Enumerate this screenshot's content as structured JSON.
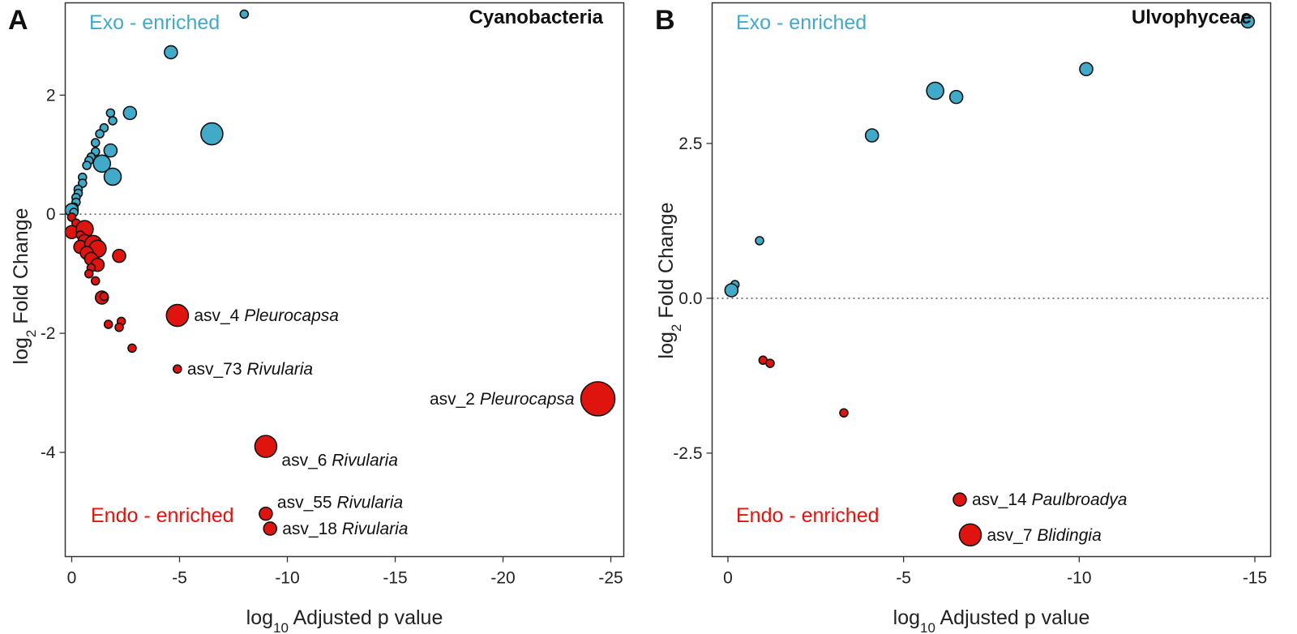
{
  "colors": {
    "exo": "#42aac9",
    "endo": "#e0140e"
  },
  "chart_data": [
    {
      "type": "scatter",
      "panel_letter": "A",
      "title": "Cyanobacteria",
      "xlabel": "log10 Adjusted p value",
      "ylabel": "log2 Fold Change",
      "xlim": [
        0.3,
        -25.6
      ],
      "ylim": [
        -5.75,
        3.55
      ],
      "xticks": [
        0,
        -5,
        -10,
        -15,
        -20,
        -25
      ],
      "yticks": [
        2,
        0,
        -2,
        -4
      ],
      "exo_label": "Exo - enriched",
      "endo_label": "Endo - enriched",
      "series": [
        {
          "name": "Exo - enriched",
          "color_key": "exo",
          "points": [
            {
              "x": -8.0,
              "y": 3.36,
              "size": 1
            },
            {
              "x": -4.6,
              "y": 2.72,
              "size": 2
            },
            {
              "x": -6.5,
              "y": 1.35,
              "size": 4
            },
            {
              "x": -2.7,
              "y": 1.7,
              "size": 2
            },
            {
              "x": -1.8,
              "y": 1.7,
              "size": 1
            },
            {
              "x": -1.9,
              "y": 1.57,
              "size": 1
            },
            {
              "x": -1.5,
              "y": 1.45,
              "size": 1
            },
            {
              "x": -1.3,
              "y": 1.35,
              "size": 1
            },
            {
              "x": -1.1,
              "y": 1.2,
              "size": 1
            },
            {
              "x": -1.8,
              "y": 1.07,
              "size": 2
            },
            {
              "x": -1.1,
              "y": 1.05,
              "size": 1
            },
            {
              "x": -0.9,
              "y": 0.96,
              "size": 1
            },
            {
              "x": -0.8,
              "y": 0.9,
              "size": 1
            },
            {
              "x": -1.4,
              "y": 0.85,
              "size": 3
            },
            {
              "x": -0.7,
              "y": 0.82,
              "size": 1
            },
            {
              "x": -1.9,
              "y": 0.63,
              "size": 3
            },
            {
              "x": -0.5,
              "y": 0.62,
              "size": 1
            },
            {
              "x": -0.5,
              "y": 0.52,
              "size": 1
            },
            {
              "x": -0.3,
              "y": 0.42,
              "size": 1
            },
            {
              "x": -0.3,
              "y": 0.35,
              "size": 1
            },
            {
              "x": -0.2,
              "y": 0.28,
              "size": 1
            },
            {
              "x": -0.2,
              "y": 0.2,
              "size": 1
            },
            {
              "x": -0.1,
              "y": 0.12,
              "size": 1
            },
            {
              "x": 0.0,
              "y": 0.07,
              "size": 2
            },
            {
              "x": -0.1,
              "y": 0.03,
              "size": 1
            }
          ]
        },
        {
          "name": "Endo - enriched",
          "color_key": "endo",
          "points": [
            {
              "x": 0.0,
              "y": -0.05,
              "size": 1
            },
            {
              "x": -0.2,
              "y": -0.15,
              "size": 1
            },
            {
              "x": 0.0,
              "y": -0.3,
              "size": 2
            },
            {
              "x": -0.6,
              "y": -0.25,
              "size": 3
            },
            {
              "x": -0.4,
              "y": -0.35,
              "size": 1
            },
            {
              "x": -0.6,
              "y": -0.45,
              "size": 2
            },
            {
              "x": -0.4,
              "y": -0.55,
              "size": 2
            },
            {
              "x": -1.0,
              "y": -0.5,
              "size": 3
            },
            {
              "x": -1.2,
              "y": -0.58,
              "size": 3
            },
            {
              "x": -0.7,
              "y": -0.65,
              "size": 2
            },
            {
              "x": -0.9,
              "y": -0.75,
              "size": 2
            },
            {
              "x": -2.2,
              "y": -0.7,
              "size": 2
            },
            {
              "x": -1.2,
              "y": -0.85,
              "size": 2
            },
            {
              "x": -0.9,
              "y": -0.9,
              "size": 1
            },
            {
              "x": -0.8,
              "y": -1.0,
              "size": 1
            },
            {
              "x": -1.1,
              "y": -1.12,
              "size": 1
            },
            {
              "x": -1.4,
              "y": -1.4,
              "size": 2
            },
            {
              "x": -1.5,
              "y": -1.38,
              "size": 1
            },
            {
              "x": -4.9,
              "y": -1.7,
              "size": 4,
              "asv": "asv_4",
              "genus": "Pleurocapsa",
              "label_side": "right"
            },
            {
              "x": -2.3,
              "y": -1.8,
              "size": 1
            },
            {
              "x": -1.7,
              "y": -1.85,
              "size": 1
            },
            {
              "x": -2.2,
              "y": -1.9,
              "size": 1
            },
            {
              "x": -2.8,
              "y": -2.25,
              "size": 1
            },
            {
              "x": -4.9,
              "y": -2.6,
              "size": 1,
              "asv": "asv_73",
              "genus": "Rivularia",
              "label_side": "right"
            },
            {
              "x": -24.4,
              "y": -3.1,
              "size": 5,
              "asv": "asv_2",
              "genus": "Pleurocapsa",
              "label_side": "left"
            },
            {
              "x": -9.0,
              "y": -3.9,
              "size": 4,
              "asv": "asv_6",
              "genus": "Rivularia",
              "label_side": "below-right"
            },
            {
              "x": -9.0,
              "y": -5.03,
              "size": 2,
              "asv": "asv_55",
              "genus": "Rivularia",
              "label_side": "above-right"
            },
            {
              "x": -9.2,
              "y": -5.28,
              "size": 2,
              "asv": "asv_18",
              "genus": "Rivularia",
              "label_side": "right"
            }
          ]
        }
      ]
    },
    {
      "type": "scatter",
      "panel_letter": "B",
      "title": "Ulvophyceae",
      "xlabel": "log10 Adjusted p value",
      "ylabel": "log2 Fold Change",
      "xlim": [
        0.45,
        -15.45
      ],
      "ylim": [
        -4.17,
        4.77
      ],
      "xticks": [
        0,
        -5,
        -10,
        -15
      ],
      "yticks": [
        2.5,
        0.0,
        -2.5
      ],
      "ytick_labels": [
        "2.5",
        "0.0",
        "-2.5"
      ],
      "exo_label": "Exo - enriched",
      "endo_label": "Endo - enriched",
      "series": [
        {
          "name": "Exo - enriched",
          "color_key": "exo",
          "points": [
            {
              "x": -14.8,
              "y": 4.47,
              "size": 2
            },
            {
              "x": -10.2,
              "y": 3.7,
              "size": 2
            },
            {
              "x": -5.9,
              "y": 3.35,
              "size": 3
            },
            {
              "x": -6.5,
              "y": 3.25,
              "size": 2
            },
            {
              "x": -4.1,
              "y": 2.63,
              "size": 2
            },
            {
              "x": -0.9,
              "y": 0.93,
              "size": 1
            },
            {
              "x": -0.2,
              "y": 0.22,
              "size": 1
            },
            {
              "x": -0.1,
              "y": 0.13,
              "size": 2
            }
          ]
        },
        {
          "name": "Endo - enriched",
          "color_key": "endo",
          "points": [
            {
              "x": -1.0,
              "y": -1.0,
              "size": 1
            },
            {
              "x": -1.2,
              "y": -1.05,
              "size": 1
            },
            {
              "x": -3.3,
              "y": -1.85,
              "size": 1
            },
            {
              "x": -6.6,
              "y": -3.25,
              "size": 2,
              "asv": "asv_14",
              "genus": "Paulbroadya",
              "label_side": "right"
            },
            {
              "x": -6.9,
              "y": -3.82,
              "size": 4,
              "asv": "asv_7",
              "genus": "Blidingia",
              "label_side": "right"
            }
          ]
        }
      ]
    }
  ]
}
